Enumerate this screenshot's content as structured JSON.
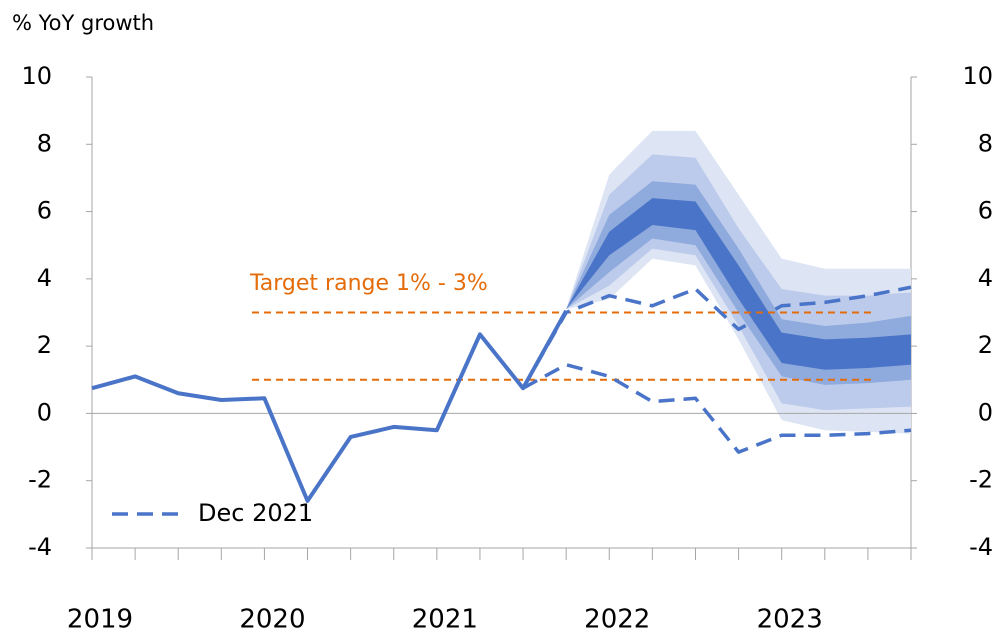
{
  "chart_data": {
    "type": "fan",
    "y_label": "% YoY growth",
    "categories": [
      "2019",
      null,
      null,
      null,
      "2020",
      null,
      null,
      null,
      "2021",
      null,
      null,
      null,
      "2022",
      null,
      null,
      null,
      "2023",
      null,
      null,
      null
    ],
    "ylim": [
      -4,
      10
    ],
    "yticks": [
      -4,
      -2,
      0,
      2,
      4,
      6,
      8,
      10
    ],
    "y2lim": [
      -4,
      10
    ],
    "y2ticks": [
      -4,
      -2,
      0,
      2,
      4,
      6,
      8,
      10
    ],
    "legend": "lower left",
    "bands": [
      {
        "color": "#dde4f4",
        "low": [
          null,
          null,
          null,
          null,
          null,
          null,
          null,
          null,
          null,
          null,
          null,
          3.1,
          3.4,
          4.6,
          4.4,
          2.2,
          -0.2,
          -0.5,
          -0.55,
          -0.6
        ],
        "high": [
          null,
          null,
          null,
          null,
          null,
          null,
          null,
          null,
          null,
          null,
          null,
          3.1,
          7.1,
          8.4,
          8.4,
          6.5,
          4.6,
          4.3,
          4.3,
          4.3
        ]
      },
      {
        "color": "#bccbeb",
        "low": [
          null,
          null,
          null,
          null,
          null,
          null,
          null,
          null,
          null,
          null,
          null,
          3.1,
          3.8,
          4.9,
          4.7,
          2.6,
          0.3,
          0.1,
          0.15,
          0.2
        ],
        "high": [
          null,
          null,
          null,
          null,
          null,
          null,
          null,
          null,
          null,
          null,
          null,
          3.1,
          6.5,
          7.7,
          7.6,
          5.5,
          3.7,
          3.5,
          3.5,
          3.6
        ]
      },
      {
        "color": "#8faadc",
        "low": [
          null,
          null,
          null,
          null,
          null,
          null,
          null,
          null,
          null,
          null,
          null,
          3.1,
          4.2,
          5.2,
          5.0,
          3.0,
          1.1,
          0.85,
          0.9,
          1.0
        ],
        "high": [
          null,
          null,
          null,
          null,
          null,
          null,
          null,
          null,
          null,
          null,
          null,
          3.1,
          5.9,
          6.9,
          6.8,
          4.9,
          2.8,
          2.6,
          2.7,
          2.9
        ]
      },
      {
        "color": "#4a74c8",
        "low": [
          null,
          null,
          null,
          null,
          null,
          null,
          null,
          null,
          null,
          null,
          null,
          3.1,
          4.7,
          5.6,
          5.45,
          3.4,
          1.5,
          1.3,
          1.35,
          1.45
        ],
        "high": [
          null,
          null,
          null,
          null,
          null,
          null,
          null,
          null,
          null,
          null,
          null,
          3.1,
          5.4,
          6.4,
          6.3,
          4.4,
          2.4,
          2.2,
          2.25,
          2.35
        ]
      }
    ],
    "series": [
      {
        "color": "#4a74c8",
        "dashed": false,
        "values": [
          0.75,
          1.1,
          0.6,
          0.4,
          0.45,
          -2.6,
          -0.7,
          -0.4,
          -0.5,
          2.35,
          0.75,
          3.05,
          null,
          null,
          null,
          null,
          null,
          null,
          null,
          null
        ]
      },
      {
        "name": "Dec 2021",
        "color": "#4a74c8",
        "dashed": true,
        "values": [
          null,
          null,
          null,
          null,
          null,
          null,
          null,
          null,
          null,
          null,
          0.75,
          3.0,
          3.5,
          3.2,
          3.7,
          2.5,
          3.2,
          3.3,
          3.5,
          3.75
        ]
      },
      {
        "color": "#4a74c8",
        "dashed": true,
        "values": [
          null,
          null,
          null,
          null,
          null,
          null,
          null,
          null,
          null,
          null,
          0.75,
          1.45,
          1.1,
          0.35,
          0.45,
          -1.15,
          -0.65,
          -0.65,
          -0.6,
          -0.5
        ]
      }
    ],
    "reference_lines": {
      "label": "Target range 1% - 3%",
      "color": "#e46c0a",
      "values": [
        1,
        3
      ]
    }
  }
}
